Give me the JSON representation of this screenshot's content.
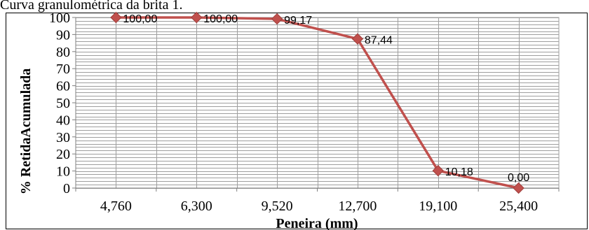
{
  "caption": "Curva granulométrica da brita 1.",
  "chart_data": {
    "type": "line",
    "categories": [
      "4,760",
      "6,300",
      "9,520",
      "12,700",
      "19,100",
      "25,400"
    ],
    "series": [
      {
        "values": [
          100.0,
          100.0,
          99.17,
          87.44,
          10.18,
          0.0
        ],
        "labels": [
          "100,00",
          "100,00",
          "99,17",
          "87,44",
          "10,18",
          "0,00"
        ]
      }
    ],
    "xlabel": "Peneira (mm)",
    "ylabel": "% RetidaAcumulada",
    "ylim": [
      0,
      100
    ],
    "yticks": [
      "0",
      "10",
      "20",
      "30",
      "40",
      "50",
      "60",
      "70",
      "80",
      "90",
      "100"
    ],
    "grid": true,
    "legend": "none",
    "colors": {
      "line": "#c0504d",
      "marker": "#c0504d",
      "grid": "#9e9e9e"
    }
  }
}
